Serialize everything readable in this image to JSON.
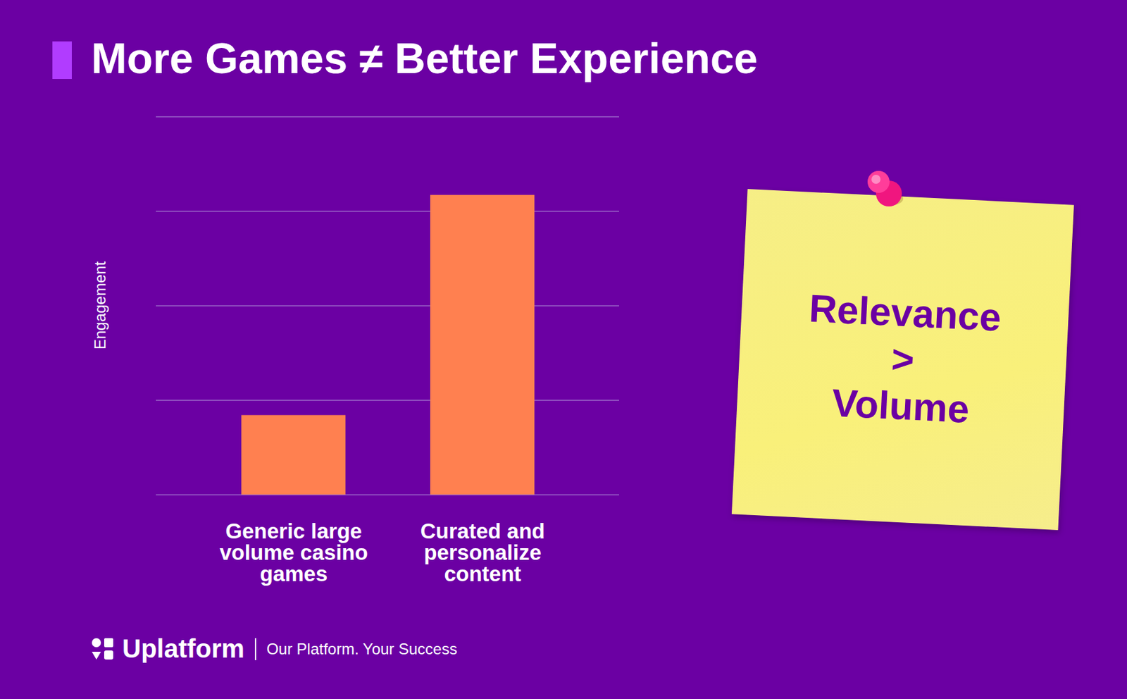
{
  "chart_data": {
    "type": "bar",
    "title": "More Games ≠ Better Experience",
    "y_label": "Engagement",
    "categories": [
      "Generic large volume casino games",
      "Curated and personalize content"
    ],
    "values": [
      0.84,
      3.17
    ],
    "color": "#ff8050",
    "ylim": [
      0,
      4
    ],
    "yticks": [
      0,
      1,
      2,
      3,
      4
    ],
    "grid": true,
    "tick_labels": "x",
    "annotations": [
      "Relevance",
      ">",
      "Volume"
    ],
    "brand": "Uplatform",
    "caption": "Our Platform. Your Success"
  }
}
